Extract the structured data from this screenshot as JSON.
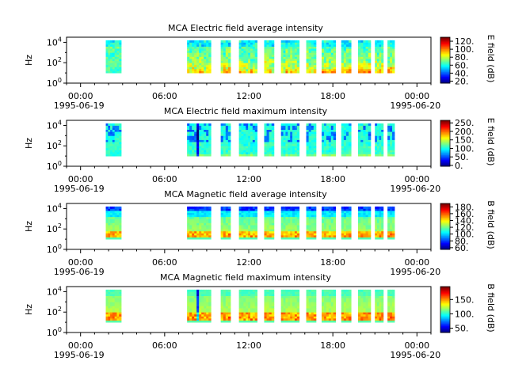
{
  "chart_data": [
    {
      "type": "heatmap",
      "title": "MCA  Electric field average intensity",
      "ylabel": "Hz",
      "colorbar_label": "E field (dB)",
      "colorbar_ticks": [
        "20.",
        "40.",
        "60.",
        "80.",
        "100.",
        "120."
      ],
      "colorbar_range": [
        15,
        130
      ],
      "y_ticks": [
        {
          "exp": 0
        },
        {
          "exp": 2
        },
        {
          "exp": 4
        }
      ],
      "x_ticks": [
        "00:00",
        "06:00",
        "12:00",
        "18:00",
        "00:00"
      ],
      "x_dates": [
        "1995-06-19",
        "1995-06-20"
      ],
      "x_range_hours": [
        -1,
        25
      ],
      "y_range_log10": [
        0,
        4.5
      ],
      "data_band_log10": [
        1.0,
        4.2
      ],
      "mode": "efield_avg"
    },
    {
      "type": "heatmap",
      "title": "MCA  Electric field maximum intensity",
      "ylabel": "Hz",
      "colorbar_label": "E field (dB)",
      "colorbar_ticks": [
        "0.",
        "50.",
        "100.",
        "150.",
        "200.",
        "250."
      ],
      "colorbar_range": [
        -5,
        265
      ],
      "y_ticks": [
        {
          "exp": 0
        },
        {
          "exp": 2
        },
        {
          "exp": 4
        }
      ],
      "x_ticks": [
        "00:00",
        "06:00",
        "12:00",
        "18:00",
        "00:00"
      ],
      "x_dates": [
        "1995-06-19",
        "1995-06-20"
      ],
      "x_range_hours": [
        -1,
        25
      ],
      "y_range_log10": [
        0,
        4.5
      ],
      "data_band_log10": [
        1.0,
        4.2
      ],
      "mode": "efield_max"
    },
    {
      "type": "heatmap",
      "title": "MCA  Magnetic field average intensity",
      "ylabel": "Hz",
      "colorbar_label": "B field (dB)",
      "colorbar_ticks": [
        "60.",
        "80.",
        "100.",
        "120.",
        "140.",
        "160.",
        "180."
      ],
      "colorbar_range": [
        55,
        190
      ],
      "y_ticks": [
        {
          "exp": 0
        },
        {
          "exp": 2
        },
        {
          "exp": 4
        }
      ],
      "x_ticks": [
        "00:00",
        "06:00",
        "12:00",
        "18:00",
        "00:00"
      ],
      "x_dates": [
        "1995-06-19",
        "1995-06-20"
      ],
      "x_range_hours": [
        -1,
        25
      ],
      "y_range_log10": [
        0,
        4.5
      ],
      "data_band_log10": [
        1.0,
        4.2
      ],
      "mode": "bfield_avg"
    },
    {
      "type": "heatmap",
      "title": "MCA  Magnetic field maximum intensity",
      "ylabel": "Hz",
      "colorbar_label": "B field (dB)",
      "colorbar_ticks": [
        "50.",
        "100.",
        "150."
      ],
      "colorbar_range": [
        35,
        195
      ],
      "y_ticks": [
        {
          "exp": 0
        },
        {
          "exp": 2
        },
        {
          "exp": 4
        }
      ],
      "x_ticks": [
        "00:00",
        "06:00",
        "12:00",
        "18:00",
        "00:00"
      ],
      "x_dates": [
        "1995-06-19",
        "1995-06-20"
      ],
      "x_range_hours": [
        -1,
        25
      ],
      "y_range_log10": [
        0,
        4.5
      ],
      "data_band_log10": [
        1.0,
        4.2
      ],
      "mode": "bfield_max"
    }
  ],
  "data_segments_hours": [
    [
      1.8,
      2.9
    ],
    [
      7.6,
      9.3
    ],
    [
      10.0,
      10.7
    ],
    [
      11.3,
      12.6
    ],
    [
      13.1,
      13.8
    ],
    [
      14.3,
      15.6
    ],
    [
      16.1,
      16.8
    ],
    [
      17.2,
      18.2
    ],
    [
      18.6,
      19.3
    ],
    [
      19.8,
      20.7
    ],
    [
      21.0,
      21.6
    ],
    [
      21.9,
      22.4
    ]
  ]
}
